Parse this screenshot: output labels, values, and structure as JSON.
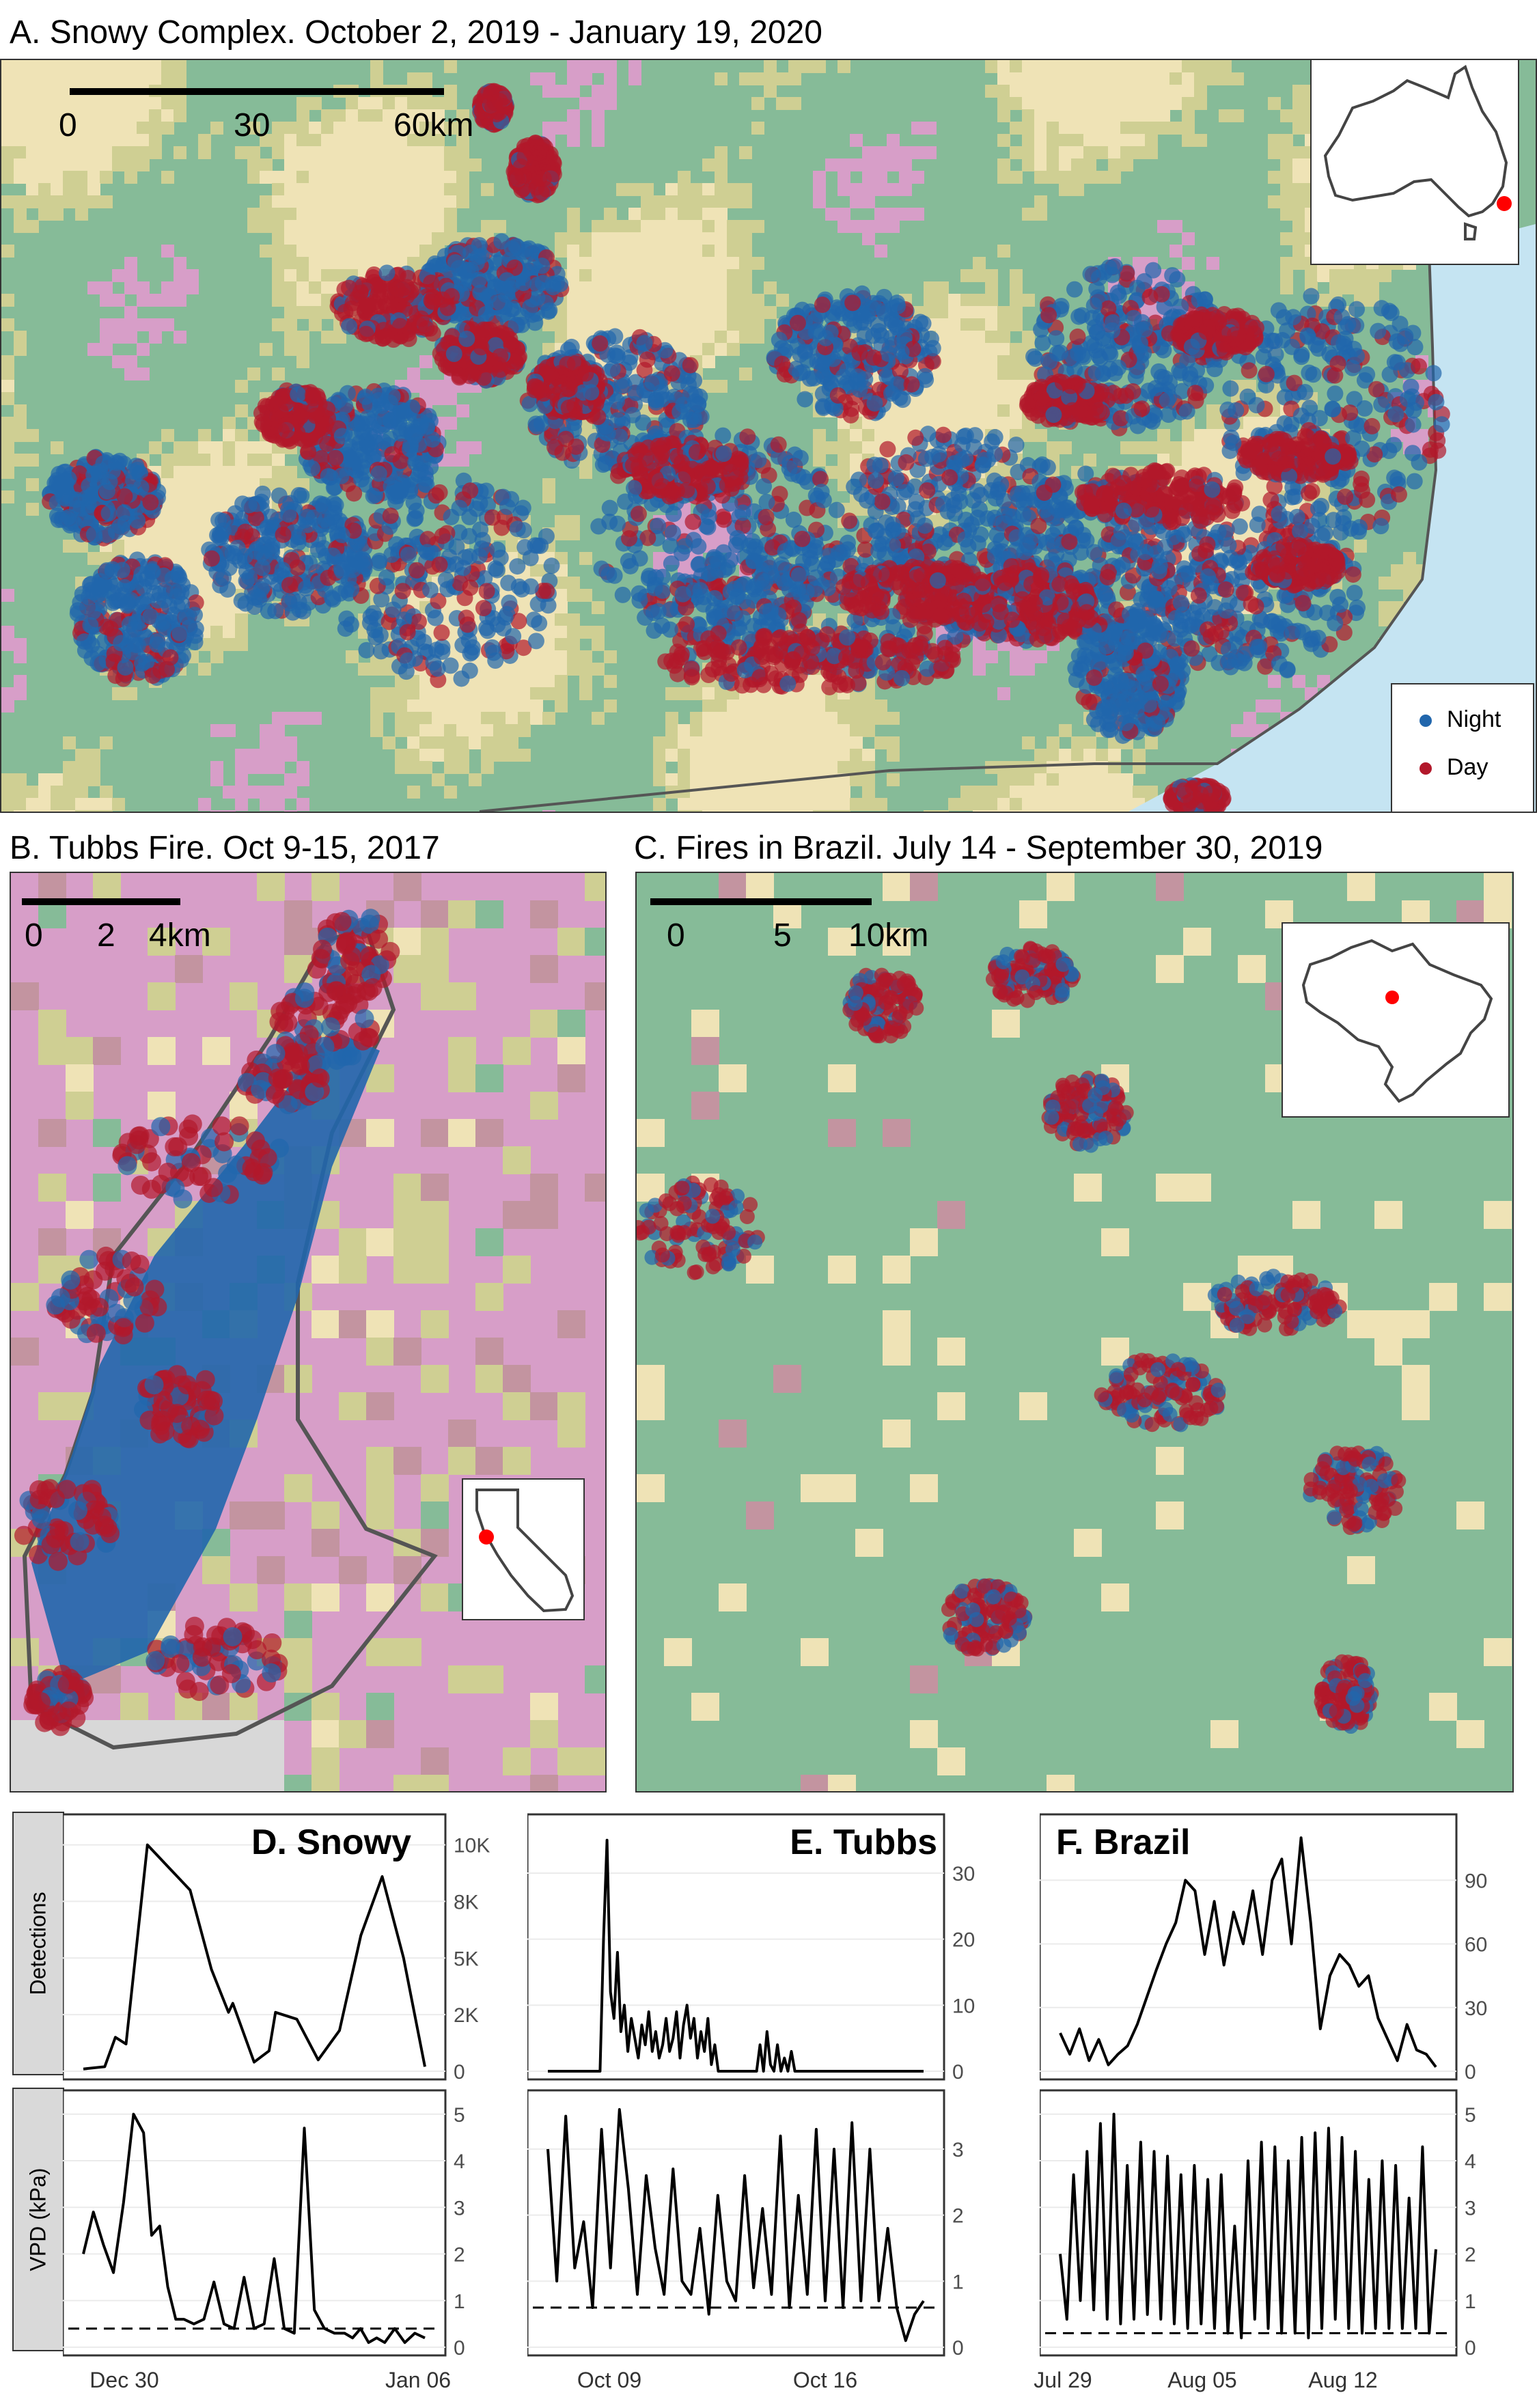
{
  "panels": {
    "a": {
      "title": "A. Snowy Complex. October 2, 2019 - January 19, 2020",
      "scale": [
        "0",
        "30",
        "60km"
      ],
      "legend": {
        "night": "Night",
        "day": "Day"
      },
      "inset_region": "Australia"
    },
    "b": {
      "title": "B. Tubbs Fire. Oct 9-15, 2017",
      "scale": [
        "0",
        "2",
        "4km"
      ],
      "inset_region": "California"
    },
    "c": {
      "title": "C. Fires in Brazil. July 14 - September 30, 2019",
      "scale": [
        "0",
        "5",
        "10km"
      ],
      "inset_region": "Brazil"
    }
  },
  "colors": {
    "night": "#2166ac",
    "day": "#b2182b",
    "forest": "#86bb98",
    "shrub": "#cfcf93",
    "savanna": "#efe3b6",
    "grass": "#d79ec8",
    "crop": "#c394a0",
    "urban": "#d8d8d8",
    "water": "#c5e4f2",
    "inset_point": "#ff0000"
  },
  "timeseries": {
    "strip_detections": "Detections",
    "strip_vpd": "VPD (kPa)",
    "snowy_label": "D. Snowy",
    "tubbs_label": "E. Tubbs",
    "brazil_label": "F. Brazil",
    "snowy_xticks": [
      "Dec 30",
      "Jan 06"
    ],
    "tubbs_xticks": [
      "Oct 09",
      "Oct 16"
    ],
    "brazil_xticks": [
      "Jul 29",
      "Aug 05",
      "Aug 12"
    ]
  },
  "chart_data": [
    {
      "type": "line",
      "panel": "D. Snowy",
      "ylabel": "Detections",
      "x": [
        0,
        1,
        1.5,
        2,
        3,
        4,
        5,
        6,
        6.8,
        7,
        8,
        8.7,
        9,
        10,
        11,
        12,
        13,
        14,
        15,
        16
      ],
      "y": [
        100,
        200,
        1500,
        1200,
        10000,
        9000,
        8000,
        4500,
        2600,
        3000,
        400,
        900,
        2600,
        2300,
        500,
        1800,
        6000,
        8600,
        5000,
        200
      ],
      "yticks": [
        "0",
        "2K",
        "5K",
        "8K",
        "10K"
      ],
      "ylim": [
        0,
        10500
      ],
      "xticks": [
        "Dec 30",
        "Jan 06"
      ]
    },
    {
      "type": "line",
      "panel": "E. Tubbs",
      "ylabel": "Detections",
      "x": [
        0,
        1,
        2,
        3,
        3.2,
        3.4,
        3.6,
        3.8,
        4,
        4.2,
        4.4,
        4.6,
        4.8,
        5,
        5.2,
        5.4,
        5.6,
        5.8,
        6,
        6.2,
        6.4,
        6.6,
        6.8,
        7,
        7.2,
        7.4,
        7.6,
        7.8,
        8,
        8.2,
        8.4,
        8.6,
        8.8,
        9,
        9.2,
        9.4,
        9.6,
        9.8,
        10,
        11,
        12,
        12.2,
        12.4,
        12.6,
        12.8,
        13,
        13.2,
        13.4,
        13.6,
        13.8,
        14,
        14.2,
        14.4,
        15,
        16,
        17,
        18,
        19,
        20,
        21,
        21.6
      ],
      "y": [
        0,
        0,
        0,
        0,
        20,
        35,
        12,
        8,
        18,
        6,
        10,
        3,
        8,
        5,
        2,
        7,
        4,
        9,
        3,
        6,
        2,
        4,
        8,
        3,
        5,
        9,
        2,
        7,
        10,
        5,
        8,
        2,
        6,
        3,
        8,
        1,
        4,
        0,
        0,
        0,
        0,
        4,
        0,
        6,
        1,
        0,
        4,
        0,
        2,
        0,
        3,
        0,
        0,
        0,
        0,
        0,
        0,
        0,
        0,
        0,
        0
      ],
      "yticks": [
        "0",
        "10",
        "20",
        "30"
      ],
      "ylim": [
        0,
        36
      ],
      "xticks": [
        "Oct 09",
        "Oct 16"
      ]
    },
    {
      "type": "line",
      "panel": "F. Brazil",
      "ylabel": "Detections",
      "x": [
        0,
        1,
        2,
        3,
        4,
        5,
        6,
        7,
        8,
        9,
        10,
        11,
        12,
        13,
        14,
        15,
        16,
        17,
        18,
        19,
        20,
        21,
        22,
        23,
        24,
        25,
        26,
        27,
        28,
        29,
        30,
        31,
        32,
        33,
        34,
        35,
        36,
        37,
        38,
        39
      ],
      "y": [
        18,
        8,
        20,
        5,
        15,
        3,
        8,
        12,
        22,
        35,
        48,
        60,
        70,
        90,
        85,
        55,
        80,
        50,
        75,
        60,
        85,
        55,
        90,
        100,
        60,
        110,
        70,
        20,
        45,
        55,
        50,
        40,
        45,
        25,
        15,
        5,
        22,
        10,
        8,
        2
      ],
      "yticks": [
        "0",
        "30",
        "60",
        "90"
      ],
      "ylim": [
        0,
        112
      ],
      "xticks": [
        "Jul 29",
        "Aug 05",
        "Aug 12"
      ]
    },
    {
      "type": "line",
      "panel": "D. Snowy",
      "ylabel": "VPD (kPa)",
      "x": [
        0,
        0.5,
        1,
        1.5,
        2,
        2.5,
        3,
        3.4,
        3.8,
        4.2,
        4.6,
        5,
        5.5,
        6,
        6.5,
        7,
        7.5,
        8,
        8.5,
        9,
        9.5,
        10,
        10.5,
        11,
        11.5,
        12,
        12.5,
        13,
        13.4,
        13.8,
        14.2,
        14.6,
        15,
        15.5,
        16,
        16.5,
        17
      ],
      "y": [
        2.0,
        2.9,
        2.2,
        1.6,
        3.1,
        5.0,
        4.6,
        2.4,
        2.6,
        1.3,
        0.6,
        0.6,
        0.5,
        0.6,
        1.4,
        0.5,
        0.4,
        1.5,
        0.4,
        0.5,
        1.9,
        0.4,
        0.3,
        4.7,
        0.8,
        0.4,
        0.3,
        0.3,
        0.2,
        0.4,
        0.1,
        0.2,
        0.1,
        0.4,
        0.1,
        0.3,
        0.2
      ],
      "threshold": 0.4,
      "yticks": [
        "0",
        "1",
        "2",
        "3",
        "4",
        "5"
      ],
      "ylim": [
        0,
        5.1
      ],
      "xticks": [
        "Dec 30",
        "Jan 06"
      ]
    },
    {
      "type": "line",
      "panel": "E. Tubbs",
      "ylabel": "VPD (kPa)",
      "x": [
        0,
        0.5,
        1,
        1.5,
        2,
        2.5,
        3,
        3.5,
        4,
        4.5,
        5,
        5.5,
        6,
        6.5,
        7,
        7.5,
        8,
        8.5,
        9,
        9.5,
        10,
        10.5,
        11,
        11.5,
        12,
        12.5,
        13,
        13.5,
        14,
        14.5,
        15,
        15.5,
        16,
        16.5,
        17,
        17.5,
        18,
        18.5,
        19,
        19.5,
        20,
        20.5,
        21
      ],
      "y": [
        3.0,
        1.0,
        3.5,
        1.2,
        1.9,
        0.6,
        3.3,
        1.2,
        3.6,
        2.4,
        0.8,
        2.6,
        1.5,
        0.8,
        2.7,
        1.0,
        0.8,
        1.8,
        0.5,
        2.3,
        1.0,
        0.7,
        2.6,
        0.9,
        2.1,
        0.8,
        3.2,
        0.6,
        2.3,
        0.8,
        3.3,
        0.7,
        3.0,
        0.6,
        3.4,
        0.7,
        3.0,
        0.7,
        1.8,
        0.6,
        0.1,
        0.5,
        0.7
      ],
      "threshold": 0.6,
      "yticks": [
        "0",
        "1",
        "2",
        "3"
      ],
      "ylim": [
        0,
        3.6
      ],
      "xticks": [
        "Oct 09",
        "Oct 16"
      ]
    },
    {
      "type": "line",
      "panel": "F. Brazil",
      "ylabel": "VPD (kPa)",
      "x": [
        0,
        0.5,
        1,
        1.5,
        2,
        2.5,
        3,
        3.5,
        4,
        4.5,
        5,
        5.5,
        6,
        6.5,
        7,
        7.5,
        8,
        8.5,
        9,
        9.5,
        10,
        10.5,
        11,
        11.5,
        12,
        12.5,
        13,
        13.5,
        14,
        14.5,
        15,
        15.5,
        16,
        16.5,
        17,
        17.5,
        18,
        18.5,
        19,
        19.5,
        20,
        20.5,
        21,
        21.5,
        22,
        22.5,
        23,
        23.5,
        24,
        24.5,
        25,
        25.5,
        26,
        26.5,
        27,
        27.5,
        28
      ],
      "y": [
        2.0,
        0.6,
        3.7,
        1.0,
        4.2,
        0.8,
        4.8,
        0.6,
        5.0,
        0.5,
        3.9,
        0.6,
        4.4,
        0.7,
        4.2,
        0.6,
        4.1,
        0.5,
        3.7,
        0.4,
        3.9,
        0.5,
        3.6,
        0.4,
        3.7,
        0.3,
        2.6,
        0.2,
        4.0,
        0.6,
        4.4,
        0.4,
        4.3,
        0.3,
        4.0,
        0.3,
        4.5,
        0.2,
        4.6,
        0.4,
        4.7,
        0.6,
        4.5,
        0.4,
        4.2,
        0.3,
        3.6,
        0.4,
        4.0,
        0.4,
        3.9,
        0.4,
        3.2,
        0.4,
        4.3,
        0.3,
        2.1
      ],
      "threshold": 0.3,
      "yticks": [
        "0",
        "1",
        "2",
        "3",
        "4",
        "5"
      ],
      "ylim": [
        0,
        5.1
      ],
      "xticks": [
        "Jul 29",
        "Aug 05",
        "Aug 12"
      ]
    }
  ]
}
